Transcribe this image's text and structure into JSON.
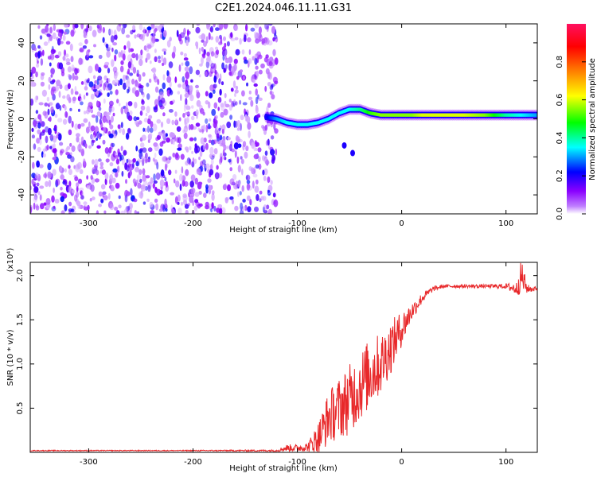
{
  "title": "C2E1.2024.046.11.11.G31",
  "colors": {
    "snr_line": "#e8282a",
    "axis": "#000000"
  },
  "chart_data": [
    {
      "type": "heatmap",
      "xlabel": "Height of straight line (km)",
      "ylabel": "Frequency (Hz)",
      "xlim": [
        -356,
        130
      ],
      "ylim": [
        -50,
        50
      ],
      "x_ticks": [
        -300,
        -200,
        -100,
        0,
        100
      ],
      "x_tick_labels": [
        "-300",
        "-200",
        "-100",
        "0",
        "100"
      ],
      "y_ticks": [
        -40,
        -20,
        0,
        20,
        40
      ],
      "y_tick_labels": [
        "-40",
        "-20",
        "0",
        "20",
        "40"
      ],
      "colorbar": {
        "label": "Normalized spectral amplitude",
        "range": [
          0,
          1
        ],
        "ticks": [
          0.0,
          0.2,
          0.4,
          0.6,
          0.8
        ],
        "tick_labels": [
          "0.0",
          "0.2",
          "0.4",
          "0.6",
          "0.8"
        ],
        "colormap": [
          "#ffffff",
          "#8a00ff",
          "#0000ff",
          "#00ffff",
          "#00ff00",
          "#ffff00",
          "#ff7f00",
          "#ff0000",
          "#ff1493"
        ]
      },
      "noise_region_x": [
        -356,
        -120
      ],
      "noise_amplitude": 0.15,
      "ridge": {
        "x": [
          -130,
          -120,
          -110,
          -100,
          -90,
          -80,
          -70,
          -60,
          -50,
          -40,
          -30,
          -20,
          -10,
          0,
          10,
          20,
          40,
          60,
          80,
          100,
          130
        ],
        "freq": [
          1,
          0,
          -2,
          -3,
          -3,
          -2,
          0,
          3,
          5,
          5,
          3,
          2,
          2,
          2,
          2,
          2,
          2,
          2,
          2,
          2,
          2
        ],
        "amplitude": [
          0.2,
          0.3,
          0.35,
          0.35,
          0.35,
          0.35,
          0.35,
          0.35,
          0.35,
          0.4,
          0.5,
          0.55,
          0.55,
          0.55,
          0.55,
          0.6,
          0.6,
          0.6,
          0.55,
          0.4,
          0.3
        ]
      },
      "blobs": [
        {
          "x": -55,
          "freq": -14,
          "amplitude": 0.2
        },
        {
          "x": -47,
          "freq": -18,
          "amplitude": 0.2
        }
      ]
    },
    {
      "type": "line",
      "xlabel": "Height of straight line (km)",
      "ylabel": "SNR (10 * v/v)",
      "y_multiplier": "(x10⁴)",
      "xlim": [
        -356,
        130
      ],
      "ylim": [
        0,
        2.15
      ],
      "x_ticks": [
        -300,
        -200,
        -100,
        0,
        100
      ],
      "x_tick_labels": [
        "-300",
        "-200",
        "-100",
        "0",
        "100"
      ],
      "y_ticks": [
        0.5,
        1.0,
        1.5,
        2.0
      ],
      "y_tick_labels": [
        "0.5",
        "1.0",
        "1.5",
        "2.0"
      ],
      "series": [
        {
          "x": [
            -356,
            -300,
            -200,
            -120,
            -110,
            -100,
            -90,
            -80,
            -70,
            -60,
            -50,
            -40,
            -30,
            -20,
            -10,
            0,
            10,
            20,
            30,
            40,
            60,
            80,
            100,
            110,
            115,
            120,
            130
          ],
          "y": [
            0.02,
            0.02,
            0.02,
            0.02,
            0.05,
            0.05,
            0.06,
            0.15,
            0.4,
            0.5,
            0.6,
            0.75,
            0.9,
            1.0,
            1.2,
            1.4,
            1.6,
            1.75,
            1.85,
            1.88,
            1.88,
            1.88,
            1.88,
            1.85,
            2.0,
            1.85,
            1.85
          ],
          "noise": [
            0.005,
            0.005,
            0.005,
            0.01,
            0.04,
            0.04,
            0.05,
            0.2,
            0.3,
            0.35,
            0.4,
            0.4,
            0.4,
            0.35,
            0.3,
            0.2,
            0.1,
            0.06,
            0.03,
            0.02,
            0.02,
            0.02,
            0.03,
            0.08,
            0.2,
            0.05,
            0.02
          ]
        }
      ]
    }
  ]
}
